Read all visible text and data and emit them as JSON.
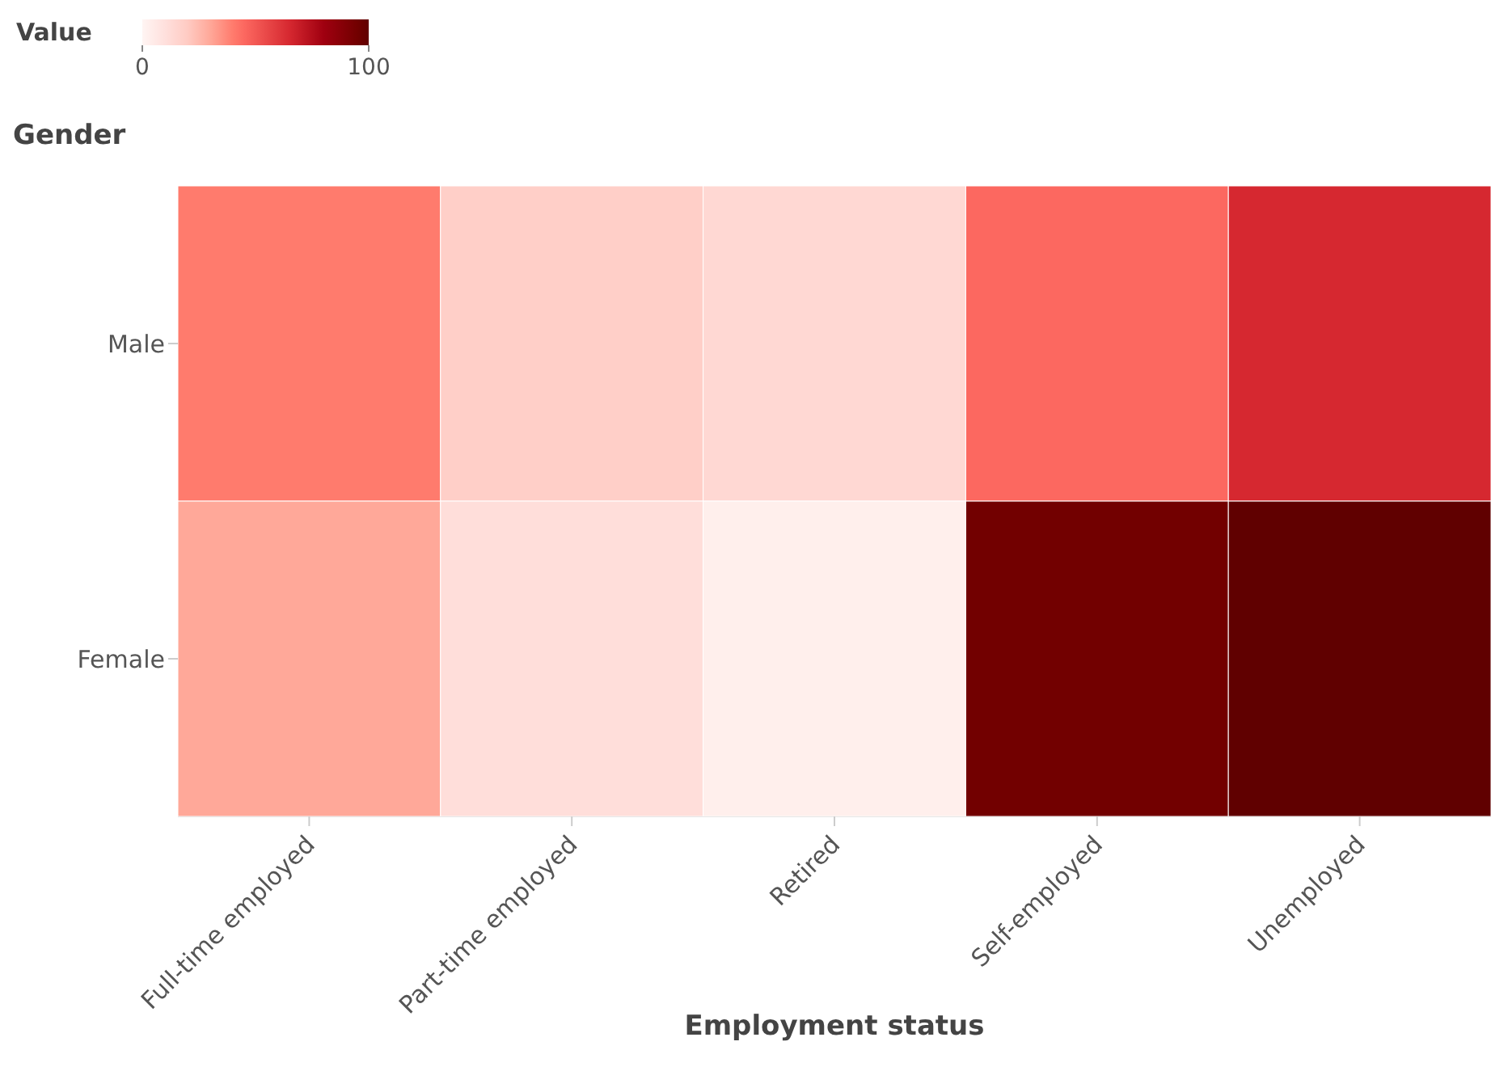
{
  "chart_data": {
    "type": "heatmap",
    "xlabel": "Employment status",
    "ylabel": "Gender",
    "clabel": "Value",
    "categories": [
      "Full-time employed",
      "Part-time employed",
      "Retired",
      "Self-employed",
      "Unemployed"
    ],
    "y_categories": [
      "Male",
      "Female"
    ],
    "cells": [
      [
        40,
        18,
        14,
        45,
        65
      ],
      [
        30,
        11,
        3,
        95,
        100
      ]
    ],
    "clim": [
      0,
      100
    ],
    "cticks": [
      0,
      100
    ]
  }
}
